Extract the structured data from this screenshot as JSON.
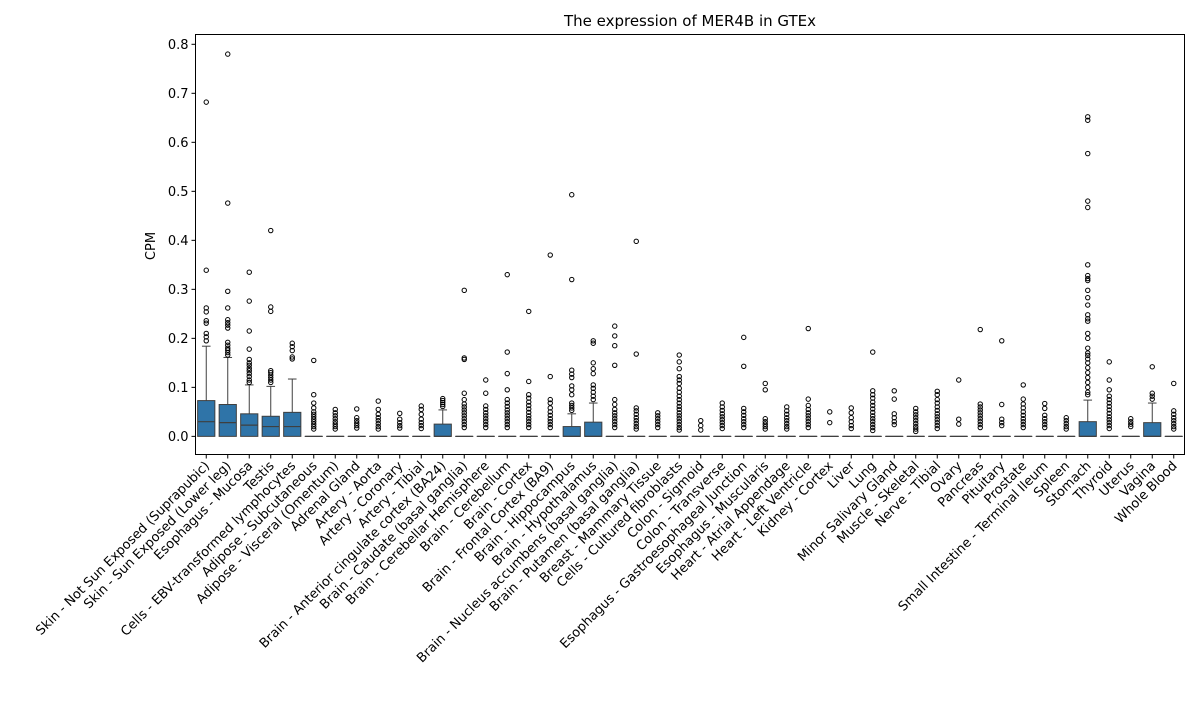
{
  "chart_data": {
    "type": "box",
    "title": "The expression of MER4B in GTEx",
    "xlabel": "",
    "ylabel": "CPM",
    "ylim": [
      -0.037,
      0.82
    ],
    "yticks": [
      0.0,
      0.1,
      0.2,
      0.3,
      0.4,
      0.5,
      0.6,
      0.7,
      0.8
    ],
    "ytick_labels": [
      "0.0",
      "0.1",
      "0.2",
      "0.3",
      "0.4",
      "0.5",
      "0.6",
      "0.7",
      "0.8"
    ],
    "box_color": "#2f74a8",
    "grid": false,
    "categories": [
      "Skin - Not Sun Exposed (Suprapubic)",
      "Skin - Sun Exposed (Lower leg)",
      "Esophagus - Mucosa",
      "Testis",
      "Cells - EBV-transformed lymphocytes",
      "Adipose - Subcutaneous",
      "Adipose - Visceral (Omentum)",
      "Adrenal Gland",
      "Artery - Aorta",
      "Artery - Coronary",
      "Artery - Tibial",
      "Brain - Anterior cingulate cortex (BA24)",
      "Brain - Caudate (basal ganglia)",
      "Brain - Cerebellar Hemisphere",
      "Brain - Cerebellum",
      "Brain - Cortex",
      "Brain - Frontal Cortex (BA9)",
      "Brain - Hippocampus",
      "Brain - Hypothalamus",
      "Brain - Nucleus accumbens (basal ganglia)",
      "Brain - Putamen (basal ganglia)",
      "Breast - Mammary Tissue",
      "Cells - Cultured fibroblasts",
      "Colon - Sigmoid",
      "Colon - Transverse",
      "Esophagus - Gastroesophageal Junction",
      "Esophagus - Muscularis",
      "Heart - Atrial Appendage",
      "Heart - Left Ventricle",
      "Kidney - Cortex",
      "Liver",
      "Lung",
      "Minor Salivary Gland",
      "Muscle - Skeletal",
      "Nerve - Tibial",
      "Ovary",
      "Pancreas",
      "Pituitary",
      "Prostate",
      "Small Intestine - Terminal Ileum",
      "Spleen",
      "Stomach",
      "Thyroid",
      "Uterus",
      "Vagina",
      "Whole Blood"
    ],
    "boxes": [
      {
        "q1": 0.0,
        "median": 0.03,
        "q3": 0.073,
        "whisker_low": 0.0,
        "whisker_high": 0.184,
        "outliers": [
          0.682,
          0.339,
          0.262,
          0.254,
          0.236,
          0.231,
          0.21,
          0.203,
          0.195
        ]
      },
      {
        "q1": 0.0,
        "median": 0.028,
        "q3": 0.065,
        "whisker_low": 0.0,
        "whisker_high": 0.161,
        "outliers": [
          0.78,
          0.476,
          0.296,
          0.262,
          0.238,
          0.232,
          0.227,
          0.221,
          0.192,
          0.186,
          0.18,
          0.176,
          0.171,
          0.166
        ]
      },
      {
        "q1": 0.0,
        "median": 0.023,
        "q3": 0.046,
        "whisker_low": 0.0,
        "whisker_high": 0.105,
        "outliers": [
          0.335,
          0.276,
          0.215,
          0.178,
          0.157,
          0.15,
          0.145,
          0.139,
          0.134,
          0.128,
          0.122,
          0.115,
          0.11
        ]
      },
      {
        "q1": 0.0,
        "median": 0.02,
        "q3": 0.041,
        "whisker_low": 0.0,
        "whisker_high": 0.102,
        "outliers": [
          0.42,
          0.264,
          0.255,
          0.134,
          0.13,
          0.125,
          0.12,
          0.115,
          0.11
        ]
      },
      {
        "q1": 0.0,
        "median": 0.02,
        "q3": 0.049,
        "whisker_low": 0.0,
        "whisker_high": 0.117,
        "outliers": [
          0.19,
          0.183,
          0.175,
          0.162,
          0.158
        ]
      },
      {
        "q1": 0.0,
        "median": 0.0,
        "q3": 0.0,
        "whisker_low": 0.0,
        "whisker_high": 0.0,
        "outliers": [
          0.155,
          0.085,
          0.068,
          0.058,
          0.05,
          0.045,
          0.04,
          0.035,
          0.03,
          0.025,
          0.02,
          0.015
        ]
      },
      {
        "q1": 0.0,
        "median": 0.0,
        "q3": 0.0,
        "whisker_low": 0.0,
        "whisker_high": 0.0,
        "outliers": [
          0.055,
          0.048,
          0.042,
          0.036,
          0.03,
          0.025,
          0.02,
          0.015
        ]
      },
      {
        "q1": 0.0,
        "median": 0.0,
        "q3": 0.0,
        "whisker_low": 0.0,
        "whisker_high": 0.0,
        "outliers": [
          0.056,
          0.038,
          0.032,
          0.027,
          0.022,
          0.017
        ]
      },
      {
        "q1": 0.0,
        "median": 0.0,
        "q3": 0.0,
        "whisker_low": 0.0,
        "whisker_high": 0.0,
        "outliers": [
          0.072,
          0.055,
          0.045,
          0.038,
          0.032,
          0.026,
          0.02,
          0.015
        ]
      },
      {
        "q1": 0.0,
        "median": 0.0,
        "q3": 0.0,
        "whisker_low": 0.0,
        "whisker_high": 0.0,
        "outliers": [
          0.047,
          0.035,
          0.028,
          0.022,
          0.017
        ]
      },
      {
        "q1": 0.0,
        "median": 0.0,
        "q3": 0.0,
        "whisker_low": 0.0,
        "whisker_high": 0.0,
        "outliers": [
          0.062,
          0.055,
          0.045,
          0.035,
          0.028,
          0.022,
          0.016
        ]
      },
      {
        "q1": 0.0,
        "median": 0.0,
        "q3": 0.025,
        "whisker_low": 0.0,
        "whisker_high": 0.054,
        "outliers": [
          0.077,
          0.073,
          0.069,
          0.065,
          0.061
        ]
      },
      {
        "q1": 0.0,
        "median": 0.0,
        "q3": 0.0,
        "whisker_low": 0.0,
        "whisker_high": 0.0,
        "outliers": [
          0.298,
          0.16,
          0.157,
          0.088,
          0.075,
          0.066,
          0.06,
          0.054,
          0.048,
          0.042,
          0.036,
          0.03,
          0.024,
          0.018
        ]
      },
      {
        "q1": 0.0,
        "median": 0.0,
        "q3": 0.0,
        "whisker_low": 0.0,
        "whisker_high": 0.0,
        "outliers": [
          0.115,
          0.088,
          0.062,
          0.055,
          0.048,
          0.042,
          0.036,
          0.03,
          0.024,
          0.018
        ]
      },
      {
        "q1": 0.0,
        "median": 0.0,
        "q3": 0.0,
        "whisker_low": 0.0,
        "whisker_high": 0.0,
        "outliers": [
          0.33,
          0.172,
          0.128,
          0.095,
          0.075,
          0.068,
          0.061,
          0.054,
          0.048,
          0.042,
          0.036,
          0.03,
          0.024,
          0.018
        ]
      },
      {
        "q1": 0.0,
        "median": 0.0,
        "q3": 0.0,
        "whisker_low": 0.0,
        "whisker_high": 0.0,
        "outliers": [
          0.255,
          0.112,
          0.085,
          0.078,
          0.07,
          0.063,
          0.056,
          0.049,
          0.042,
          0.036,
          0.03,
          0.024,
          0.018
        ]
      },
      {
        "q1": 0.0,
        "median": 0.0,
        "q3": 0.0,
        "whisker_low": 0.0,
        "whisker_high": 0.0,
        "outliers": [
          0.37,
          0.122,
          0.075,
          0.068,
          0.058,
          0.05,
          0.043,
          0.036,
          0.03,
          0.024,
          0.018
        ]
      },
      {
        "q1": 0.0,
        "median": 0.0,
        "q3": 0.02,
        "whisker_low": 0.0,
        "whisker_high": 0.046,
        "outliers": [
          0.493,
          0.32,
          0.135,
          0.127,
          0.12,
          0.103,
          0.095,
          0.085,
          0.068,
          0.063,
          0.058,
          0.053
        ]
      },
      {
        "q1": 0.0,
        "median": 0.0,
        "q3": 0.029,
        "whisker_low": 0.0,
        "whisker_high": 0.068,
        "outliers": [
          0.195,
          0.19,
          0.15,
          0.138,
          0.128,
          0.105,
          0.098,
          0.09,
          0.082,
          0.075
        ]
      },
      {
        "q1": 0.0,
        "median": 0.0,
        "q3": 0.0,
        "whisker_low": 0.0,
        "whisker_high": 0.0,
        "outliers": [
          0.225,
          0.205,
          0.185,
          0.145,
          0.075,
          0.065,
          0.055,
          0.048,
          0.042,
          0.036,
          0.03,
          0.024,
          0.018
        ]
      },
      {
        "q1": 0.0,
        "median": 0.0,
        "q3": 0.0,
        "whisker_low": 0.0,
        "whisker_high": 0.0,
        "outliers": [
          0.398,
          0.168,
          0.058,
          0.052,
          0.045,
          0.038,
          0.032,
          0.026,
          0.02,
          0.015
        ]
      },
      {
        "q1": 0.0,
        "median": 0.0,
        "q3": 0.0,
        "whisker_low": 0.0,
        "whisker_high": 0.0,
        "outliers": [
          0.048,
          0.042,
          0.036,
          0.03,
          0.024,
          0.018
        ]
      },
      {
        "q1": 0.0,
        "median": 0.0,
        "q3": 0.0,
        "whisker_low": 0.0,
        "whisker_high": 0.0,
        "outliers": [
          0.166,
          0.152,
          0.138,
          0.122,
          0.115,
          0.108,
          0.098,
          0.09,
          0.082,
          0.075,
          0.068,
          0.061,
          0.055,
          0.048,
          0.042,
          0.036,
          0.03,
          0.024,
          0.018,
          0.013
        ]
      },
      {
        "q1": 0.0,
        "median": 0.0,
        "q3": 0.0,
        "whisker_low": 0.0,
        "whisker_high": 0.0,
        "outliers": [
          0.032,
          0.022,
          0.013
        ]
      },
      {
        "q1": 0.0,
        "median": 0.0,
        "q3": 0.0,
        "whisker_low": 0.0,
        "whisker_high": 0.0,
        "outliers": [
          0.068,
          0.06,
          0.053,
          0.046,
          0.04,
          0.034,
          0.028,
          0.022,
          0.016
        ]
      },
      {
        "q1": 0.0,
        "median": 0.0,
        "q3": 0.0,
        "whisker_low": 0.0,
        "whisker_high": 0.0,
        "outliers": [
          0.202,
          0.143,
          0.057,
          0.05,
          0.043,
          0.036,
          0.03,
          0.024,
          0.018
        ]
      },
      {
        "q1": 0.0,
        "median": 0.0,
        "q3": 0.0,
        "whisker_low": 0.0,
        "whisker_high": 0.0,
        "outliers": [
          0.108,
          0.095,
          0.036,
          0.03,
          0.025,
          0.02,
          0.015
        ]
      },
      {
        "q1": 0.0,
        "median": 0.0,
        "q3": 0.0,
        "whisker_low": 0.0,
        "whisker_high": 0.0,
        "outliers": [
          0.06,
          0.052,
          0.045,
          0.038,
          0.032,
          0.026,
          0.02,
          0.015
        ]
      },
      {
        "q1": 0.0,
        "median": 0.0,
        "q3": 0.0,
        "whisker_low": 0.0,
        "whisker_high": 0.0,
        "outliers": [
          0.22,
          0.076,
          0.063,
          0.055,
          0.048,
          0.042,
          0.036,
          0.03,
          0.024,
          0.018
        ]
      },
      {
        "q1": 0.0,
        "median": 0.0,
        "q3": 0.0,
        "whisker_low": 0.0,
        "whisker_high": 0.0,
        "outliers": [
          0.05,
          0.028
        ]
      },
      {
        "q1": 0.0,
        "median": 0.0,
        "q3": 0.0,
        "whisker_low": 0.0,
        "whisker_high": 0.0,
        "outliers": [
          0.058,
          0.048,
          0.038,
          0.03,
          0.022,
          0.016
        ]
      },
      {
        "q1": 0.0,
        "median": 0.0,
        "q3": 0.0,
        "whisker_low": 0.0,
        "whisker_high": 0.0,
        "outliers": [
          0.172,
          0.093,
          0.085,
          0.078,
          0.07,
          0.063,
          0.056,
          0.049,
          0.042,
          0.036,
          0.03,
          0.024,
          0.018,
          0.012
        ]
      },
      {
        "q1": 0.0,
        "median": 0.0,
        "q3": 0.0,
        "whisker_low": 0.0,
        "whisker_high": 0.0,
        "outliers": [
          0.093,
          0.076,
          0.046,
          0.038,
          0.03,
          0.024
        ]
      },
      {
        "q1": 0.0,
        "median": 0.0,
        "q3": 0.0,
        "whisker_low": 0.0,
        "whisker_high": 0.0,
        "outliers": [
          0.057,
          0.05,
          0.044,
          0.038,
          0.032,
          0.026,
          0.02,
          0.015,
          0.01
        ]
      },
      {
        "q1": 0.0,
        "median": 0.0,
        "q3": 0.0,
        "whisker_low": 0.0,
        "whisker_high": 0.0,
        "outliers": [
          0.092,
          0.085,
          0.075,
          0.068,
          0.06,
          0.053,
          0.046,
          0.04,
          0.034,
          0.028,
          0.022,
          0.016
        ]
      },
      {
        "q1": 0.0,
        "median": 0.0,
        "q3": 0.0,
        "whisker_low": 0.0,
        "whisker_high": 0.0,
        "outliers": [
          0.115,
          0.035,
          0.025
        ]
      },
      {
        "q1": 0.0,
        "median": 0.0,
        "q3": 0.0,
        "whisker_low": 0.0,
        "whisker_high": 0.0,
        "outliers": [
          0.218,
          0.066,
          0.06,
          0.054,
          0.048,
          0.042,
          0.036,
          0.03,
          0.024,
          0.018
        ]
      },
      {
        "q1": 0.0,
        "median": 0.0,
        "q3": 0.0,
        "whisker_low": 0.0,
        "whisker_high": 0.0,
        "outliers": [
          0.195,
          0.065,
          0.035,
          0.028,
          0.022
        ]
      },
      {
        "q1": 0.0,
        "median": 0.0,
        "q3": 0.0,
        "whisker_low": 0.0,
        "whisker_high": 0.0,
        "outliers": [
          0.105,
          0.076,
          0.066,
          0.058,
          0.05,
          0.043,
          0.036,
          0.03,
          0.024,
          0.018
        ]
      },
      {
        "q1": 0.0,
        "median": 0.0,
        "q3": 0.0,
        "whisker_low": 0.0,
        "whisker_high": 0.0,
        "outliers": [
          0.067,
          0.057,
          0.043,
          0.036,
          0.03,
          0.024,
          0.018
        ]
      },
      {
        "q1": 0.0,
        "median": 0.0,
        "q3": 0.0,
        "whisker_low": 0.0,
        "whisker_high": 0.0,
        "outliers": [
          0.038,
          0.032,
          0.026,
          0.02,
          0.015
        ]
      },
      {
        "q1": 0.0,
        "median": 0.0,
        "q3": 0.03,
        "whisker_low": 0.0,
        "whisker_high": 0.074,
        "outliers": [
          0.652,
          0.645,
          0.577,
          0.48,
          0.467,
          0.35,
          0.328,
          0.322,
          0.318,
          0.298,
          0.283,
          0.268,
          0.248,
          0.24,
          0.235,
          0.21,
          0.2,
          0.18,
          0.17,
          0.165,
          0.158,
          0.15,
          0.14,
          0.13,
          0.12,
          0.11,
          0.1,
          0.09,
          0.085
        ]
      },
      {
        "q1": 0.0,
        "median": 0.0,
        "q3": 0.0,
        "whisker_low": 0.0,
        "whisker_high": 0.0,
        "outliers": [
          0.152,
          0.115,
          0.095,
          0.082,
          0.075,
          0.068,
          0.061,
          0.054,
          0.047,
          0.04,
          0.034,
          0.028,
          0.022,
          0.016
        ]
      },
      {
        "q1": 0.0,
        "median": 0.0,
        "q3": 0.0,
        "whisker_low": 0.0,
        "whisker_high": 0.0,
        "outliers": [
          0.036,
          0.03,
          0.025,
          0.02
        ]
      },
      {
        "q1": 0.0,
        "median": 0.0,
        "q3": 0.028,
        "whisker_low": 0.0,
        "whisker_high": 0.068,
        "outliers": [
          0.142,
          0.088,
          0.082,
          0.076
        ]
      },
      {
        "q1": 0.0,
        "median": 0.0,
        "q3": 0.0,
        "whisker_low": 0.0,
        "whisker_high": 0.0,
        "outliers": [
          0.108,
          0.052,
          0.045,
          0.038,
          0.032,
          0.026,
          0.02,
          0.015
        ]
      }
    ]
  }
}
